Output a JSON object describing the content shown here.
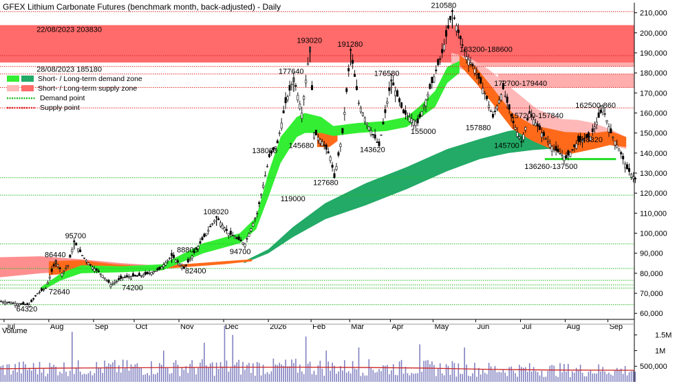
{
  "chart_data": {
    "type": "candlestick",
    "title": "GFEX Lithium Carbonate Futures (benchmark month, back-adjusted) - Daily",
    "y_axis_side": "right",
    "ylim": [
      57000,
      215000
    ],
    "y_ticks": [
      "60,000",
      "70,000",
      "80,000",
      "90,000",
      "100,000",
      "110,000",
      "120,000",
      "130,000",
      "140,000",
      "150,000",
      "160,000",
      "170,000",
      "180,000",
      "190,000",
      "200,000",
      "210,000"
    ],
    "y_tick_values": [
      60000,
      70000,
      80000,
      90000,
      100000,
      110000,
      120000,
      130000,
      140000,
      150000,
      160000,
      170000,
      180000,
      190000,
      200000,
      210000
    ],
    "months": [
      "Jul",
      "Aug",
      "Sep",
      "Oct",
      "Nov",
      "Dec",
      "2026",
      "Feb",
      "Mar",
      "Apr",
      "May",
      "Jun",
      "Jul",
      "Aug",
      "Sep"
    ],
    "month_starts": [
      2,
      24,
      46,
      66,
      88,
      110,
      132,
      153,
      172,
      192,
      213,
      234,
      256,
      278,
      299
    ],
    "x_range": [
      0,
      312
    ],
    "price_path": [
      [
        0,
        66000
      ],
      [
        10,
        64500
      ],
      [
        14,
        64320
      ],
      [
        18,
        70000
      ],
      [
        22,
        72640
      ],
      [
        27,
        86440
      ],
      [
        30,
        80000
      ],
      [
        33,
        84000
      ],
      [
        36,
        95700
      ],
      [
        40,
        89000
      ],
      [
        44,
        84000
      ],
      [
        50,
        79000
      ],
      [
        54,
        74200
      ],
      [
        60,
        78000
      ],
      [
        70,
        79000
      ],
      [
        78,
        82000
      ],
      [
        84,
        88800
      ],
      [
        90,
        82400
      ],
      [
        98,
        95000
      ],
      [
        106,
        108020
      ],
      [
        112,
        100000
      ],
      [
        120,
        94700
      ],
      [
        126,
        110000
      ],
      [
        132,
        138080
      ],
      [
        136,
        145000
      ],
      [
        140,
        165000
      ],
      [
        144,
        177640
      ],
      [
        148,
        160000
      ],
      [
        152,
        193020
      ],
      [
        154,
        150000
      ],
      [
        158,
        145680
      ],
      [
        162,
        138000
      ],
      [
        164,
        127680
      ],
      [
        168,
        150000
      ],
      [
        172,
        191280
      ],
      [
        176,
        165000
      ],
      [
        180,
        155000
      ],
      [
        186,
        143620
      ],
      [
        192,
        176580
      ],
      [
        198,
        160000
      ],
      [
        205,
        155000
      ],
      [
        212,
        175000
      ],
      [
        217,
        190000
      ],
      [
        222,
        210580
      ],
      [
        225,
        200000
      ],
      [
        229,
        188000
      ],
      [
        233,
        182000
      ],
      [
        238,
        170000
      ],
      [
        242,
        157880
      ],
      [
        247,
        172000
      ],
      [
        252,
        155000
      ],
      [
        256,
        145700
      ],
      [
        260,
        160000
      ],
      [
        266,
        150000
      ],
      [
        272,
        142000
      ],
      [
        278,
        137500
      ],
      [
        284,
        146000
      ],
      [
        290,
        148320
      ],
      [
        296,
        162500
      ],
      [
        300,
        150000
      ],
      [
        304,
        142000
      ],
      [
        308,
        132000
      ],
      [
        312,
        127000
      ]
    ],
    "highs_at": [
      [
        36,
        95700
      ],
      [
        27,
        86440
      ],
      [
        106,
        108020
      ],
      [
        84,
        88800
      ],
      [
        144,
        177640
      ],
      [
        152,
        193020
      ],
      [
        172,
        191280
      ],
      [
        192,
        176580
      ],
      [
        222,
        210580
      ]
    ],
    "short_demand_zone": {
      "start": 20,
      "points": [
        [
          20,
          71000,
          73000
        ],
        [
          30,
          76500,
          80000
        ],
        [
          40,
          80000,
          84000
        ],
        [
          60,
          80500,
          83500
        ],
        [
          80,
          81500,
          84500
        ],
        [
          100,
          90000,
          95000
        ],
        [
          118,
          95000,
          100000
        ],
        [
          126,
          102000,
          108000
        ],
        [
          132,
          118000,
          130000
        ],
        [
          138,
          135000,
          148000
        ],
        [
          146,
          148000,
          158000
        ],
        [
          150,
          150000,
          160000
        ],
        [
          158,
          150000,
          158000
        ],
        [
          164,
          148500,
          153500
        ],
        [
          176,
          150000,
          155000
        ],
        [
          190,
          151000,
          156000
        ],
        [
          200,
          153000,
          158000
        ],
        [
          206,
          157000,
          163000
        ],
        [
          214,
          163000,
          171000
        ],
        [
          220,
          175000,
          183000
        ],
        [
          226,
          180000,
          186000
        ]
      ]
    },
    "long_demand_zone": {
      "start": 120,
      "points": [
        [
          120,
          85000,
          86000
        ],
        [
          132,
          90000,
          92000
        ],
        [
          144,
          98000,
          103000
        ],
        [
          160,
          107000,
          115000
        ],
        [
          180,
          114000,
          125000
        ],
        [
          200,
          122000,
          133000
        ],
        [
          220,
          131000,
          142000
        ],
        [
          236,
          137000,
          147000
        ],
        [
          250,
          140000,
          151000
        ],
        [
          262,
          141500,
          153000
        ],
        [
          276,
          142500,
          153500
        ],
        [
          290,
          143500,
          152000
        ],
        [
          300,
          144000,
          150500
        ]
      ]
    },
    "short_supply_zone": {
      "start": 222,
      "points": [
        [
          222,
          183000,
          190000
        ],
        [
          230,
          181000,
          188000
        ],
        [
          240,
          172000,
          182000
        ],
        [
          252,
          160000,
          172000
        ],
        [
          264,
          152000,
          162000
        ],
        [
          276,
          150000,
          157000
        ],
        [
          284,
          150000,
          156500
        ],
        [
          292,
          148000,
          155000
        ],
        [
          300,
          144000,
          152000
        ],
        [
          308,
          142000,
          148000
        ]
      ]
    },
    "long_supply_zone": {
      "points": [
        [
          0,
          78000,
          88000
        ],
        [
          20,
          80000,
          88500
        ],
        [
          40,
          81000,
          87000
        ],
        [
          60,
          81500,
          85000
        ],
        [
          76,
          82000,
          84000
        ]
      ]
    },
    "orange_segments": [
      {
        "points": [
          [
            24,
            79000,
            86000
          ],
          [
            40,
            80500,
            86500
          ],
          [
            56,
            81000,
            84500
          ],
          [
            72,
            81500,
            83500
          ],
          [
            90,
            83000,
            84500
          ],
          [
            110,
            84500,
            86000
          ],
          [
            124,
            86000,
            87000
          ]
        ]
      },
      {
        "points": [
          [
            156,
            143000,
            153000
          ],
          [
            162,
            143000,
            152000
          ],
          [
            166,
            146000,
            150000
          ]
        ]
      },
      {
        "points": [
          [
            226,
            184000,
            189000
          ],
          [
            234,
            175000,
            183000
          ],
          [
            242,
            165000,
            173000
          ],
          [
            252,
            152000,
            160000
          ],
          [
            262,
            146000,
            154000
          ],
          [
            278,
            139000,
            150500
          ],
          [
            292,
            142000,
            150000
          ],
          [
            300,
            144000,
            151000
          ],
          [
            308,
            143000,
            148000
          ]
        ]
      }
    ],
    "horizontal_levels": [
      {
        "value": 210580,
        "kind": "supply"
      },
      {
        "value": 188600,
        "kind": "supply"
      },
      {
        "value": 183200,
        "kind": "supply"
      },
      {
        "value": 179440,
        "kind": "supply"
      },
      {
        "value": 172700,
        "kind": "supply"
      },
      {
        "value": 162500,
        "kind": "supply"
      },
      {
        "value": 127680,
        "kind": "demand"
      },
      {
        "value": 119000,
        "kind": "demand"
      },
      {
        "value": 94700,
        "kind": "demand"
      },
      {
        "value": 82400,
        "kind": "demand"
      },
      {
        "value": 76500,
        "kind": "demand"
      },
      {
        "value": 74200,
        "kind": "demand"
      },
      {
        "value": 72640,
        "kind": "demand"
      },
      {
        "value": 64320,
        "kind": "demand"
      }
    ],
    "long_term_supply_block": {
      "x_from": 0,
      "x_to": 312,
      "y_from": 185180,
      "y_to": 203830
    },
    "supply_zone_bars": [
      {
        "x_from": 225,
        "x_to": 312,
        "y_from": 183200,
        "y_to": 188600
      },
      {
        "x_from": 245,
        "x_to": 312,
        "y_from": 172700,
        "y_to": 179440
      }
    ],
    "demand_segment": {
      "x_from": 268,
      "x_to": 303,
      "value": 137000
    },
    "annotations": [
      {
        "text": "22/08/2023 203830",
        "x": 18,
        "y": 200500
      },
      {
        "text": "28/08/2023 185180",
        "x": 18,
        "y": 180500
      },
      {
        "text": "210580",
        "x": 212,
        "y": 212500
      },
      {
        "text": "193020",
        "x": 146,
        "y": 195000
      },
      {
        "text": "191280",
        "x": 166,
        "y": 193000
      },
      {
        "text": "183200-188600",
        "x": 226,
        "y": 190500
      },
      {
        "text": "177640",
        "x": 137,
        "y": 179500
      },
      {
        "text": "176580",
        "x": 184,
        "y": 178500
      },
      {
        "text": "172700-179440",
        "x": 243,
        "y": 173500
      },
      {
        "text": "162500-860",
        "x": 283,
        "y": 162500
      },
      {
        "text": "157200-157840",
        "x": 251,
        "y": 157500
      },
      {
        "text": "157880",
        "x": 229,
        "y": 151500
      },
      {
        "text": "155000",
        "x": 202,
        "y": 149500
      },
      {
        "text": "148320",
        "x": 284,
        "y": 145500
      },
      {
        "text": "145680",
        "x": 142,
        "y": 142500
      },
      {
        "text": "145700",
        "x": 243,
        "y": 142500
      },
      {
        "text": "143620",
        "x": 177,
        "y": 140500
      },
      {
        "text": "138080",
        "x": 124,
        "y": 140000
      },
      {
        "text": "136260-137500",
        "x": 258,
        "y": 132000
      },
      {
        "text": "127680",
        "x": 154,
        "y": 124000
      },
      {
        "text": "119000",
        "x": 138,
        "y": 116000
      },
      {
        "text": "108020",
        "x": 100,
        "y": 109500
      },
      {
        "text": "94700",
        "x": 113,
        "y": 89500
      },
      {
        "text": "95700",
        "x": 32,
        "y": 97500
      },
      {
        "text": "88800",
        "x": 87,
        "y": 90500
      },
      {
        "text": "86440",
        "x": 22,
        "y": 88000
      },
      {
        "text": "82400",
        "x": 91,
        "y": 80000
      },
      {
        "text": "72640",
        "x": 24,
        "y": 69500
      },
      {
        "text": "74200",
        "x": 60,
        "y": 71500
      },
      {
        "text": "64320",
        "x": 8,
        "y": 61000
      }
    ],
    "legend": [
      {
        "label": "Short- / Long-term demand zone",
        "swatches": [
          "#33ee33",
          "#22aa66"
        ]
      },
      {
        "label": "Short- / Long-term supply zone",
        "swatches": [
          "#ffb8b8",
          "#ff6a6a"
        ]
      },
      {
        "label": "Demand point",
        "line": "#22bb22"
      },
      {
        "label": "Supply point",
        "line": "#dd2222"
      }
    ],
    "volume": {
      "label": "Volume",
      "y_ticks": [
        "1.5M",
        "1M",
        "500,000"
      ],
      "y_tick_values": [
        1500000,
        1000000,
        500000
      ],
      "ylim": [
        0,
        1800000
      ],
      "ma_points": [
        [
          0,
          420000
        ],
        [
          30,
          440000
        ],
        [
          60,
          450000
        ],
        [
          90,
          460000
        ],
        [
          120,
          470000
        ],
        [
          150,
          470000
        ],
        [
          180,
          460000
        ],
        [
          210,
          440000
        ],
        [
          240,
          400000
        ],
        [
          270,
          380000
        ],
        [
          312,
          370000
        ]
      ],
      "spikes": [
        [
          35,
          1600000
        ],
        [
          110,
          1800000
        ],
        [
          114,
          1500000
        ],
        [
          150,
          1450000
        ],
        [
          206,
          1200000
        ],
        [
          228,
          1100000
        ],
        [
          80,
          1000000
        ],
        [
          100,
          1250000
        ],
        [
          160,
          1000000
        ],
        [
          176,
          1100000
        ]
      ]
    },
    "colors": {
      "short_demand": "#33ee33",
      "long_demand": "#22aa66",
      "short_supply": "#ffb8b8",
      "long_supply": "#ff6a6a",
      "orange": "#ff6a1a",
      "demand_point": "#22bb22",
      "supply_point": "#dd2222",
      "volume_bar": "#8080c0",
      "volume_ma": "#cc2222"
    }
  }
}
